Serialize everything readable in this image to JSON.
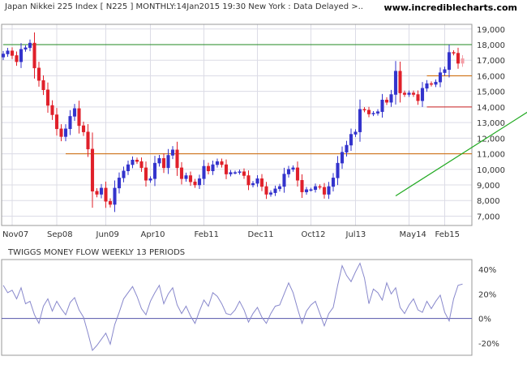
{
  "header": {
    "title": "Japan Nikkei 225 Index [ N225 ] MONTHLY:14Jan2015 19:30 New York : Data Delayed >..",
    "site": "www.incrediblecharts.com"
  },
  "colors": {
    "bullish": "#3333cc",
    "bearish": "#e0202a",
    "current_candle": "#f4a0a8",
    "grid": "#dcdce6",
    "frame": "#999999",
    "resistance_top": "#228822",
    "support_orange": "#cc6600",
    "support_red": "#cc2222",
    "trendline": "#22aa22",
    "indicator_line": "#8888cc",
    "zero_line": "#5555aa"
  },
  "chart_data": [
    {
      "type": "candlestick",
      "title": "Japan Nikkei 225 Index [ N225 ] MONTHLY:14Jan2015 19:30 New York : Data Delayed >..",
      "x_tick_labels": [
        "Nov07",
        "Sep08",
        "Jun09",
        "Apr10",
        "Feb11",
        "Dec11",
        "Oct12",
        "Jul13",
        "May14",
        "Feb15"
      ],
      "y_tick_labels": [
        "7,000",
        "8,000",
        "9,000",
        "10,000",
        "11,000",
        "12,000",
        "13,000",
        "14,000",
        "15,000",
        "16,000",
        "17,000",
        "18,000",
        "19,000"
      ],
      "ylim": [
        6400,
        19300
      ],
      "horizontal_lines": [
        {
          "value": 18000,
          "color": "resistance_top",
          "from_index": 0
        },
        {
          "value": 11000,
          "color": "support_orange",
          "from_index": 14
        },
        {
          "value": 16000,
          "color": "support_orange",
          "from_index": 95
        },
        {
          "value": 14000,
          "color": "support_red",
          "from_index": 95
        }
      ],
      "trendline": {
        "from": [
          88,
          8300
        ],
        "to": [
          132,
          16300
        ]
      },
      "closes": [
        17400,
        17600,
        17300,
        16900,
        17700,
        17800,
        18100,
        16500,
        15700,
        15100,
        14100,
        13500,
        12600,
        12100,
        12600,
        13400,
        13900,
        12800,
        12400,
        11300,
        8600,
        8400,
        8800,
        7950,
        7750,
        8800,
        9450,
        9900,
        10300,
        10600,
        10500,
        10100,
        9300,
        9400,
        10400,
        10700,
        10100,
        10900,
        11250,
        10100,
        9400,
        9600,
        9200,
        9000,
        9400,
        10200,
        9900,
        10300,
        10500,
        10300,
        9700,
        9800,
        9800,
        9850,
        9600,
        9000,
        9100,
        9400,
        8900,
        8400,
        8500,
        8750,
        8900,
        9700,
        10000,
        10100,
        9300,
        8550,
        8700,
        8700,
        8900,
        8850,
        8400,
        8900,
        9450,
        10400,
        11100,
        11550,
        12250,
        12400,
        13850,
        13800,
        13550,
        13600,
        13700,
        14450,
        14300,
        14800,
        16300,
        14900,
        14800,
        14900,
        14800,
        14400,
        15200,
        15500,
        15450,
        15600,
        16200,
        16400,
        17500,
        17450,
        16800,
        17100
      ],
      "series": [
        {
          "name": "Japan Nikkei 225 Index [ N225 ]",
          "values": "closes"
        }
      ]
    },
    {
      "type": "line",
      "title": "TWIGGS MONEY FLOW WEEKLY 13 PERIODS",
      "y_tick_labels": [
        "40%",
        "20%",
        "0%",
        "-20%"
      ],
      "ylim": [
        -0.3,
        0.48
      ],
      "values": [
        0.27,
        0.21,
        0.23,
        0.16,
        0.25,
        0.12,
        0.14,
        0.03,
        -0.04,
        0.1,
        0.16,
        0.06,
        0.14,
        0.08,
        0.03,
        0.13,
        0.17,
        0.07,
        0.01,
        -0.12,
        -0.26,
        -0.22,
        -0.17,
        -0.12,
        -0.21,
        -0.05,
        0.05,
        0.16,
        0.21,
        0.26,
        0.18,
        0.08,
        0.03,
        0.14,
        0.21,
        0.27,
        0.12,
        0.2,
        0.25,
        0.11,
        0.04,
        0.1,
        0.02,
        -0.04,
        0.06,
        0.15,
        0.1,
        0.21,
        0.18,
        0.12,
        0.04,
        0.03,
        0.07,
        0.14,
        0.07,
        -0.03,
        0.04,
        0.09,
        0.01,
        -0.04,
        0.04,
        0.1,
        0.11,
        0.2,
        0.29,
        0.21,
        0.08,
        -0.04,
        0.06,
        0.11,
        0.14,
        0.04,
        -0.06,
        0.04,
        0.09,
        0.27,
        0.43,
        0.35,
        0.3,
        0.38,
        0.45,
        0.33,
        0.12,
        0.24,
        0.21,
        0.15,
        0.29,
        0.2,
        0.25,
        0.09,
        0.04,
        0.11,
        0.16,
        0.07,
        0.05,
        0.14,
        0.08,
        0.14,
        0.19,
        0.05,
        -0.02,
        0.16,
        0.27,
        0.28
      ]
    }
  ]
}
